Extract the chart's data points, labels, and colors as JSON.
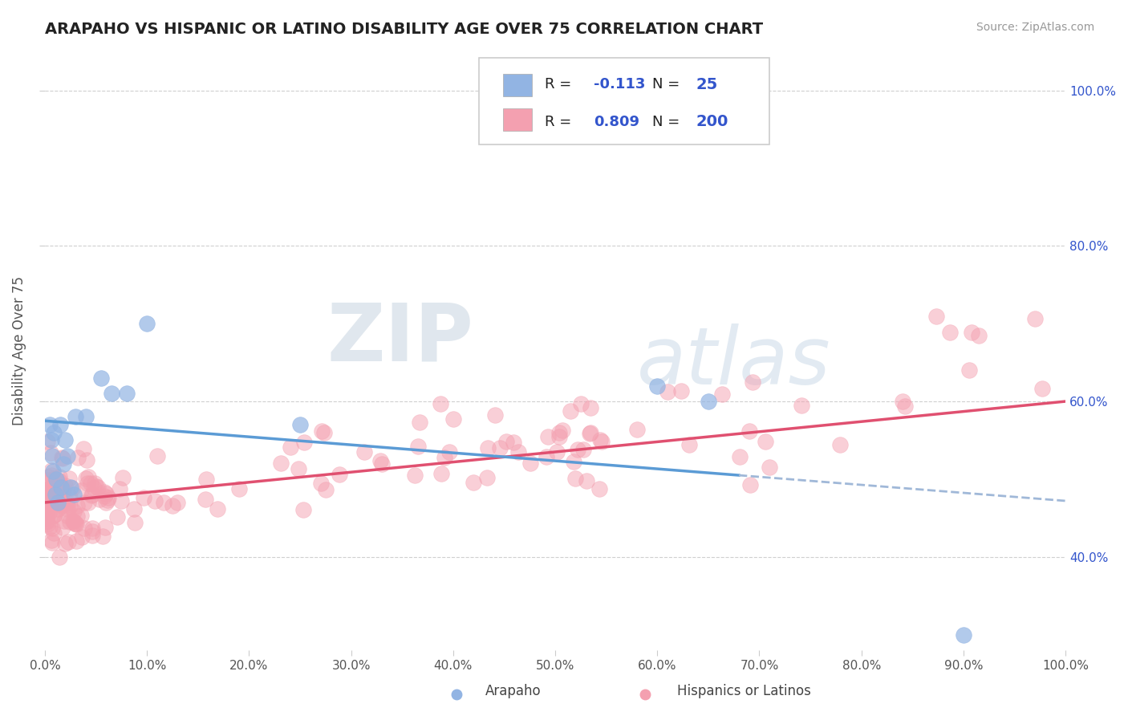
{
  "title": "ARAPAHO VS HISPANIC OR LATINO DISABILITY AGE OVER 75 CORRELATION CHART",
  "source": "Source: ZipAtlas.com",
  "xlabel_arapaho": "Arapaho",
  "xlabel_hispanic": "Hispanics or Latinos",
  "ylabel": "Disability Age Over 75",
  "xmin": 0.0,
  "xmax": 1.0,
  "ymin": 0.28,
  "ymax": 1.05,
  "yticks": [
    0.4,
    0.6,
    0.8,
    1.0
  ],
  "ytick_labels": [
    "40.0%",
    "60.0%",
    "80.0%",
    "100.0%"
  ],
  "xticks": [
    0.0,
    0.1,
    0.2,
    0.3,
    0.4,
    0.5,
    0.6,
    0.7,
    0.8,
    0.9,
    1.0
  ],
  "xtick_labels": [
    "0.0%",
    "10.0%",
    "20.0%",
    "30.0%",
    "40.0%",
    "50.0%",
    "60.0%",
    "70.0%",
    "80.0%",
    "90.0%",
    "100.0%"
  ],
  "r_arapaho": -0.113,
  "n_arapaho": 25,
  "r_hispanic": 0.809,
  "n_hispanic": 200,
  "color_arapaho": "#92b4e3",
  "color_hispanic": "#f4a0b0",
  "color_trend_arapaho": "#5b9bd5",
  "color_trend_hispanic": "#e05070",
  "color_trend_dashed": "#a0b8d8",
  "watermark_zip": "ZIP",
  "watermark_atlas": "atlas",
  "legend_r_label": "R = ",
  "legend_n_label": "N = ",
  "legend_color_text": "#3355cc",
  "arapaho_x": [
    0.005,
    0.006,
    0.007,
    0.008,
    0.009,
    0.01,
    0.011,
    0.013,
    0.015,
    0.016,
    0.018,
    0.02,
    0.022,
    0.025,
    0.028,
    0.03,
    0.04,
    0.055,
    0.065,
    0.08,
    0.1,
    0.25,
    0.6,
    0.65,
    0.9
  ],
  "arapaho_y": [
    0.57,
    0.55,
    0.53,
    0.51,
    0.56,
    0.48,
    0.5,
    0.47,
    0.57,
    0.49,
    0.52,
    0.55,
    0.53,
    0.49,
    0.48,
    0.58,
    0.58,
    0.63,
    0.61,
    0.61,
    0.7,
    0.57,
    0.62,
    0.6,
    0.3
  ],
  "trend_ara_x0": 0.0,
  "trend_ara_x1": 0.68,
  "trend_ara_x2": 1.0,
  "trend_ara_y0": 0.575,
  "trend_ara_y1": 0.505,
  "trend_ara_y2": 0.472
}
